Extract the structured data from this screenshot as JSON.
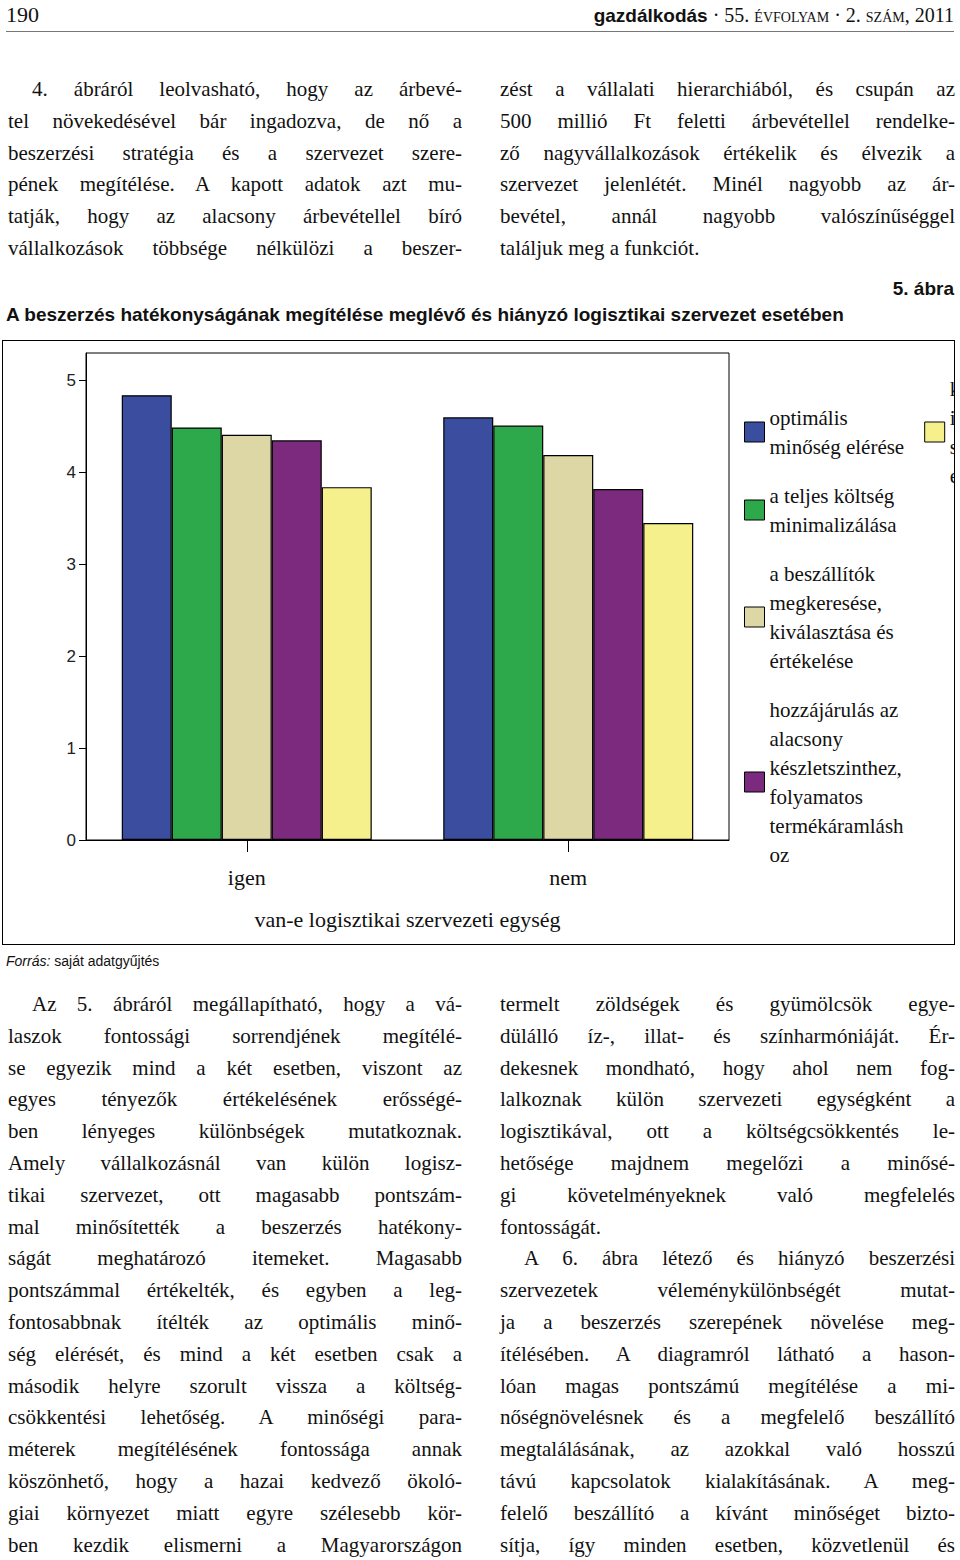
{
  "header": {
    "page": "190",
    "journal": "gazdálkodás",
    "issue": "· 55. évfolyam · 2. szám, 2011"
  },
  "text_top": {
    "left": [
      [
        "4. ábráról leolvasható, hogy az árbevé-",
        "tel növekedésével bár ingadozva, de nő a",
        "beszerzési stratégia és a szervezet szere-",
        "pének megítélése. A kapott adatok azt mu-",
        "tatják, hogy az alacsony árbevétellel bíró",
        "vállalkozások többsége nélkülözi a beszer-"
      ]
    ],
    "right": [
      [
        "zést a vállalati hierarchiából, és csupán az",
        "500 millió Ft feletti árbevétellel rendelke-",
        "ző nagyvállalkozások értékelik és élvezik a",
        "szervezet jelenlétét. Minél nagyobb az ár-",
        "bevétel, annál nagyobb valószínűséggel",
        "találjuk meg a funkciót."
      ]
    ]
  },
  "figure": {
    "label": "5. ábra",
    "title": "A beszerzés hatékonyságának megítélése meglévő és hiányzó logisztikai szervezet esetében",
    "source_label": "Forrás:",
    "source": "saját adatgyűjtés"
  },
  "chart_data": {
    "type": "bar",
    "x_label": "van-e logisztikai szervezeti egység",
    "categories": [
      "igen",
      "nem"
    ],
    "series": [
      {
        "name": "optimális\nminőség elérése",
        "color": "#3a4d9f",
        "values": [
          4.84,
          4.6
        ]
      },
      {
        "name": "a teljes költség\nminimalizálása",
        "color": "#2da84b",
        "values": [
          4.49,
          4.51
        ]
      },
      {
        "name": "a beszállítók\nmegkeresése,\nkiválasztása és\nértékelése",
        "color": "#dcd7a5",
        "values": [
          4.41,
          4.19
        ]
      },
      {
        "name": "hozzájárulás az\nalacsony\nkészletszinthez,\nfolyamatos\ntermékáramlásh\noz",
        "color": "#7b2a7d",
        "values": [
          4.35,
          3.82
        ]
      },
      {
        "name": "kooperálás és\nintegráció más\nszervezeti\negységekkel",
        "color": "#f5f08c",
        "values": [
          3.84,
          3.45
        ]
      }
    ],
    "ylim": [
      0,
      5.3
    ],
    "yticks": [
      0,
      1,
      2,
      3,
      4,
      5
    ],
    "grid": false,
    "legend": "right"
  },
  "text_bottom": {
    "left": [
      [
        "Az 5. ábráról megállapítható, hogy a vá-",
        "laszok fontossági sorrendjének megítélé-",
        "se egyezik mind a két esetben, viszont az",
        "egyes tényezők értékelésének erősségé-",
        "ben lényeges különbségek mutatkoznak.",
        "Amely vállalkozásnál van külön logisz-",
        "tikai szervezet, ott magasabb pontszám-",
        "mal minősítették a beszerzés hatékony-",
        "ságát meghatározó itemeket. Magasabb",
        "pontszámmal értékelték, és egyben a leg-",
        "fontosabbnak ítélték az optimális minő-",
        "ség elérését, és mind a két esetben csak a",
        "második helyre szorult vissza a költség-",
        "csökkentési lehetőség. A minőségi para-",
        "méterek megítélésének fontossága annak",
        "köszönhető, hogy a hazai kedvező ökoló-",
        "giai környezet miatt egyre szélesebb kör-",
        "ben kezdik elismerni a Magyarországon"
      ]
    ],
    "right": [
      [
        "termelt zöldségek és gyümölcsök egye-",
        "dülálló íz-, illat- és színharmóniáját. Ér-",
        "dekesnek mondható, hogy ahol nem fog-",
        "lalkoznak külön szervezeti egységként a",
        "logisztikával, ott a költségcsökkentés le-",
        "hetősége majdnem megelőzi a minősé-",
        "gi követelményeknek való megfelelés",
        "fontosságát."
      ],
      [
        "A 6. ábra létező és hiányzó beszerzési",
        "szervezetek véleménykülönbségét mutat-",
        "ja a beszerzés szerepének növelése meg-",
        "ítélésében. A diagramról látható a hason-",
        "lóan magas pontszámú megítélése a mi-",
        "nőségnövelésnek és a megfelelő beszállító",
        "megtalálásának, az azokkal való hosszú",
        "távú kapcsolatok kialakításának. A meg-",
        "felelő beszállító a kívánt minőséget bizto-",
        "sítja, így minden esetben, közvetlenül és"
      ]
    ]
  }
}
